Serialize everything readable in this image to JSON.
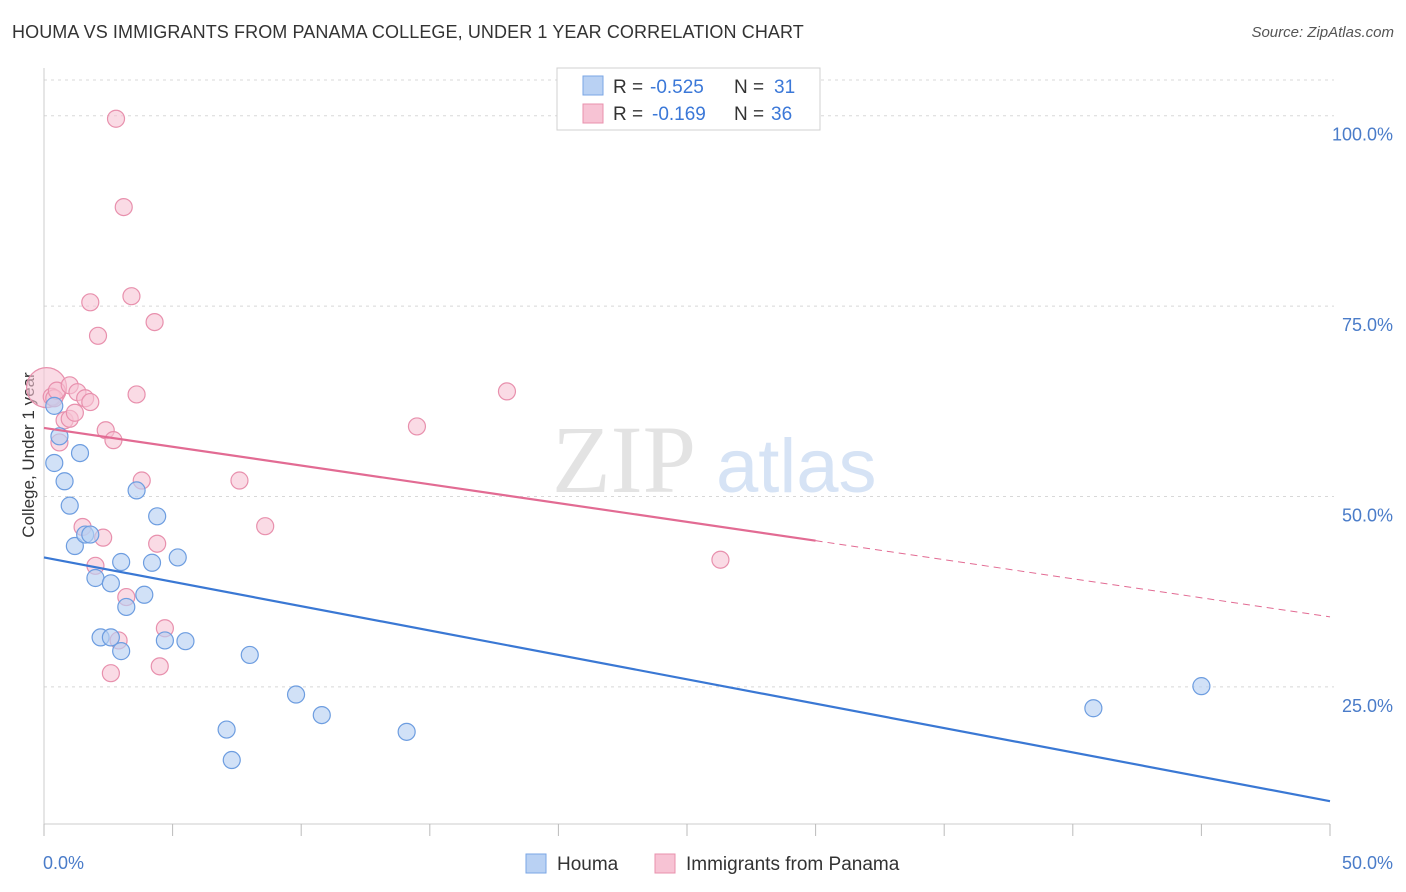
{
  "title": "HOUMA VS IMMIGRANTS FROM PANAMA COLLEGE, UNDER 1 YEAR CORRELATION CHART",
  "source": "Source: ZipAtlas.com",
  "watermark": {
    "zip": "ZIP",
    "atlas": "atlas"
  },
  "colors": {
    "houma": "#3a78d4",
    "houma_fill": "#b9d1f3",
    "panama": "#e26b93",
    "panama_fill": "#f7c3d4",
    "tick_text": "#4a7cc9",
    "grid": "#d8d8d8"
  },
  "legend": {
    "rows": [
      {
        "r_label": "R =",
        "r_value": "-0.525",
        "n_label": "N =",
        "n_value": "31"
      },
      {
        "r_label": "R =",
        "r_value": "-0.169",
        "n_label": "N =",
        "n_value": "36"
      }
    ]
  },
  "chart_data": {
    "type": "scatter",
    "xlabel": "",
    "ylabel": "College, Under 1 year",
    "xlim": [
      0,
      50
    ],
    "ylim": [
      7,
      106
    ],
    "x_tick_labels": [
      "0.0%",
      "50.0%"
    ],
    "y_ticks": [
      25,
      50,
      75,
      100
    ],
    "y_tick_labels": [
      "25.0%",
      "50.0%",
      "75.0%",
      "100.0%"
    ],
    "grid": "horizontal dashed",
    "legend_position": "top-center",
    "series": [
      {
        "name": "Houma",
        "points": [
          [
            0.4,
            61.9
          ],
          [
            0.4,
            54.4
          ],
          [
            0.6,
            57.9
          ],
          [
            0.8,
            52.0
          ],
          [
            1.0,
            48.8
          ],
          [
            1.2,
            43.5
          ],
          [
            1.4,
            55.7
          ],
          [
            1.6,
            45.0
          ],
          [
            1.8,
            45.0
          ],
          [
            2.0,
            39.3
          ],
          [
            2.2,
            31.5
          ],
          [
            2.6,
            31.5
          ],
          [
            2.6,
            38.6
          ],
          [
            3.0,
            41.4
          ],
          [
            3.0,
            29.7
          ],
          [
            3.2,
            35.5
          ],
          [
            3.6,
            50.8
          ],
          [
            3.9,
            37.1
          ],
          [
            4.2,
            41.3
          ],
          [
            4.4,
            47.4
          ],
          [
            4.7,
            31.1
          ],
          [
            5.2,
            42.0
          ],
          [
            5.5,
            31.0
          ],
          [
            7.1,
            19.4
          ],
          [
            7.3,
            15.4
          ],
          [
            8.0,
            29.2
          ],
          [
            9.8,
            24.0
          ],
          [
            10.8,
            21.3
          ],
          [
            14.1,
            19.1
          ],
          [
            40.8,
            22.2
          ],
          [
            45.0,
            25.1
          ]
        ],
        "trend": {
          "x": [
            0,
            50
          ],
          "y": [
            42.0,
            10.0
          ]
        }
      },
      {
        "name": "Immigrants from Panama",
        "points": [
          [
            0.1,
            64.3
          ],
          [
            0.3,
            63.1
          ],
          [
            0.4,
            62.9
          ],
          [
            0.5,
            63.9
          ],
          [
            0.6,
            57.1
          ],
          [
            0.8,
            60.0
          ],
          [
            1.0,
            64.6
          ],
          [
            1.0,
            60.2
          ],
          [
            1.2,
            61.0
          ],
          [
            1.3,
            63.7
          ],
          [
            1.5,
            46.0
          ],
          [
            1.6,
            62.9
          ],
          [
            1.8,
            75.5
          ],
          [
            1.8,
            62.4
          ],
          [
            2.0,
            40.9
          ],
          [
            2.1,
            71.1
          ],
          [
            2.3,
            44.6
          ],
          [
            2.4,
            58.7
          ],
          [
            2.6,
            26.8
          ],
          [
            2.7,
            57.4
          ],
          [
            2.9,
            31.1
          ],
          [
            2.8,
            99.6
          ],
          [
            3.1,
            88.0
          ],
          [
            3.2,
            36.8
          ],
          [
            3.4,
            76.3
          ],
          [
            3.6,
            63.4
          ],
          [
            3.8,
            52.1
          ],
          [
            4.3,
            72.9
          ],
          [
            4.4,
            43.8
          ],
          [
            4.5,
            27.7
          ],
          [
            4.7,
            32.7
          ],
          [
            7.6,
            52.1
          ],
          [
            8.6,
            46.1
          ],
          [
            14.5,
            59.2
          ],
          [
            18.0,
            63.8
          ],
          [
            26.3,
            41.7
          ]
        ],
        "trend": {
          "x": [
            0,
            30
          ],
          "y": [
            59.0,
            44.2
          ]
        },
        "trend_dashed": {
          "x": [
            30,
            50
          ],
          "y": [
            44.2,
            34.2
          ]
        }
      }
    ]
  },
  "bottom_legend": [
    "Houma",
    "Immigrants from Panama"
  ]
}
